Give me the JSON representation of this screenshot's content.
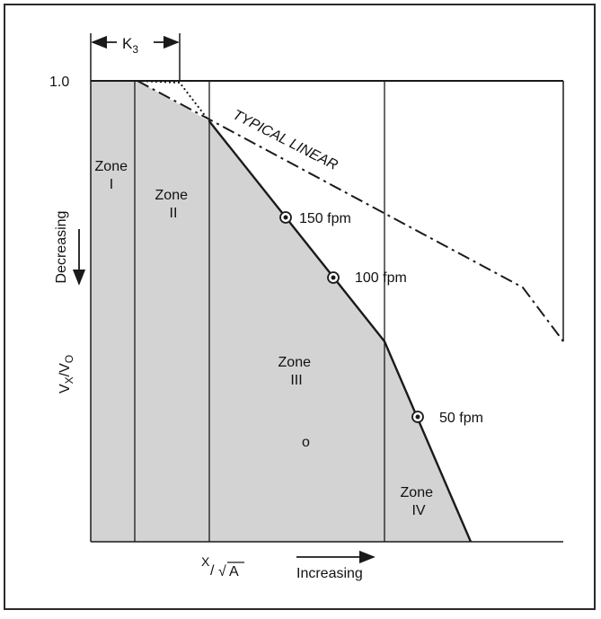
{
  "colors": {
    "frame": "#2a2a2a",
    "zone_fill": "#d3d3d3",
    "line": "#1a1a1a"
  },
  "top_dimension": {
    "label_main": "K",
    "label_sub": "3"
  },
  "y_axis": {
    "tick_label": "1.0",
    "direction_label": "Decreasing",
    "label_main_1": "V",
    "label_sub_1": "X",
    "label_sep": "/",
    "label_main_2": "V",
    "label_sub_2": "O"
  },
  "x_axis": {
    "label_x": "X",
    "label_sep": "/",
    "label_root": "√",
    "label_a": "A",
    "direction_label": "Increasing"
  },
  "zones": [
    {
      "line1": "Zone",
      "line2": "I"
    },
    {
      "line1": "Zone",
      "line2": "II"
    },
    {
      "line1": "Zone",
      "line2": "III"
    },
    {
      "line1": "Zone",
      "line2": "IV"
    }
  ],
  "typical_linear_label": "TYPICAL LINEAR",
  "velocity_points": [
    {
      "label": "150 fpm"
    },
    {
      "label": "100 fpm"
    },
    {
      "label": "50 fpm"
    }
  ],
  "stray_mark": "o"
}
